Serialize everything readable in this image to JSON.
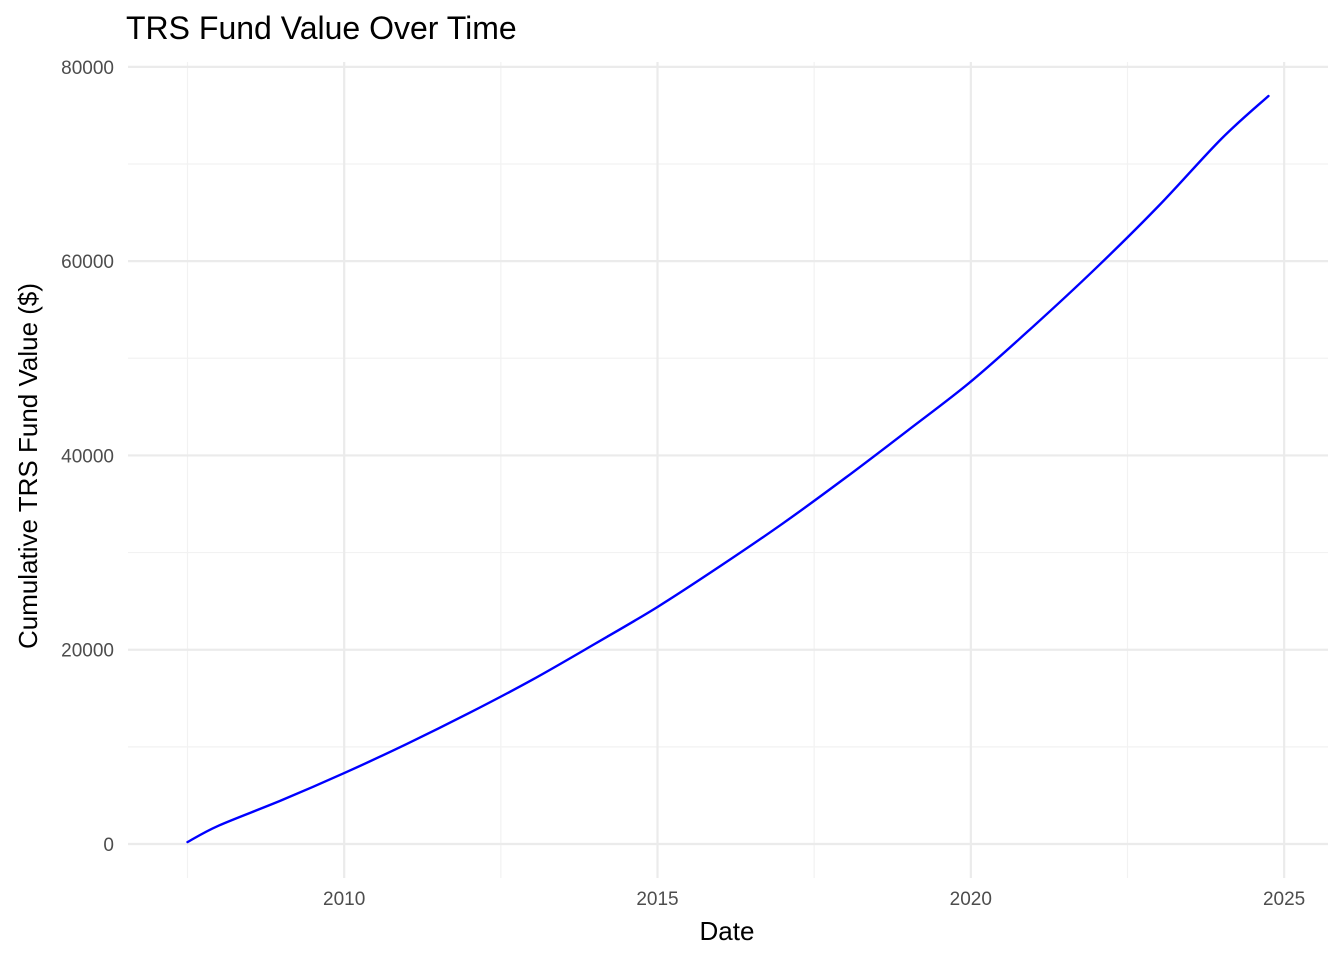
{
  "chart_data": {
    "type": "line",
    "title": "TRS Fund Value Over Time",
    "xlabel": "Date",
    "ylabel": "Cumulative TRS Fund Value ($)",
    "x_type": "year",
    "xlim": [
      2006.55,
      2025.7
    ],
    "ylim": [
      -3500,
      80500
    ],
    "x_ticks": [
      2010,
      2015,
      2020,
      2025
    ],
    "x_tick_labels": [
      "2010",
      "2015",
      "2020",
      "2025"
    ],
    "y_ticks": [
      0,
      20000,
      40000,
      60000,
      80000
    ],
    "y_tick_labels": [
      "0",
      "20000",
      "40000",
      "60000",
      "80000"
    ],
    "grid": true,
    "legend": "none",
    "series": [
      {
        "color": "#0000ff",
        "x": [
          2007.5,
          2008.0,
          2009.0,
          2010.0,
          2011.0,
          2012.0,
          2013.0,
          2014.0,
          2015.0,
          2016.0,
          2017.0,
          2018.0,
          2019.0,
          2020.0,
          2021.0,
          2022.0,
          2023.0,
          2024.0,
          2024.75
        ],
        "y": [
          200,
          1900,
          4500,
          7300,
          10300,
          13500,
          16900,
          20600,
          24400,
          28600,
          33000,
          37700,
          42600,
          47600,
          53300,
          59300,
          65700,
          72600,
          77000
        ]
      }
    ]
  }
}
